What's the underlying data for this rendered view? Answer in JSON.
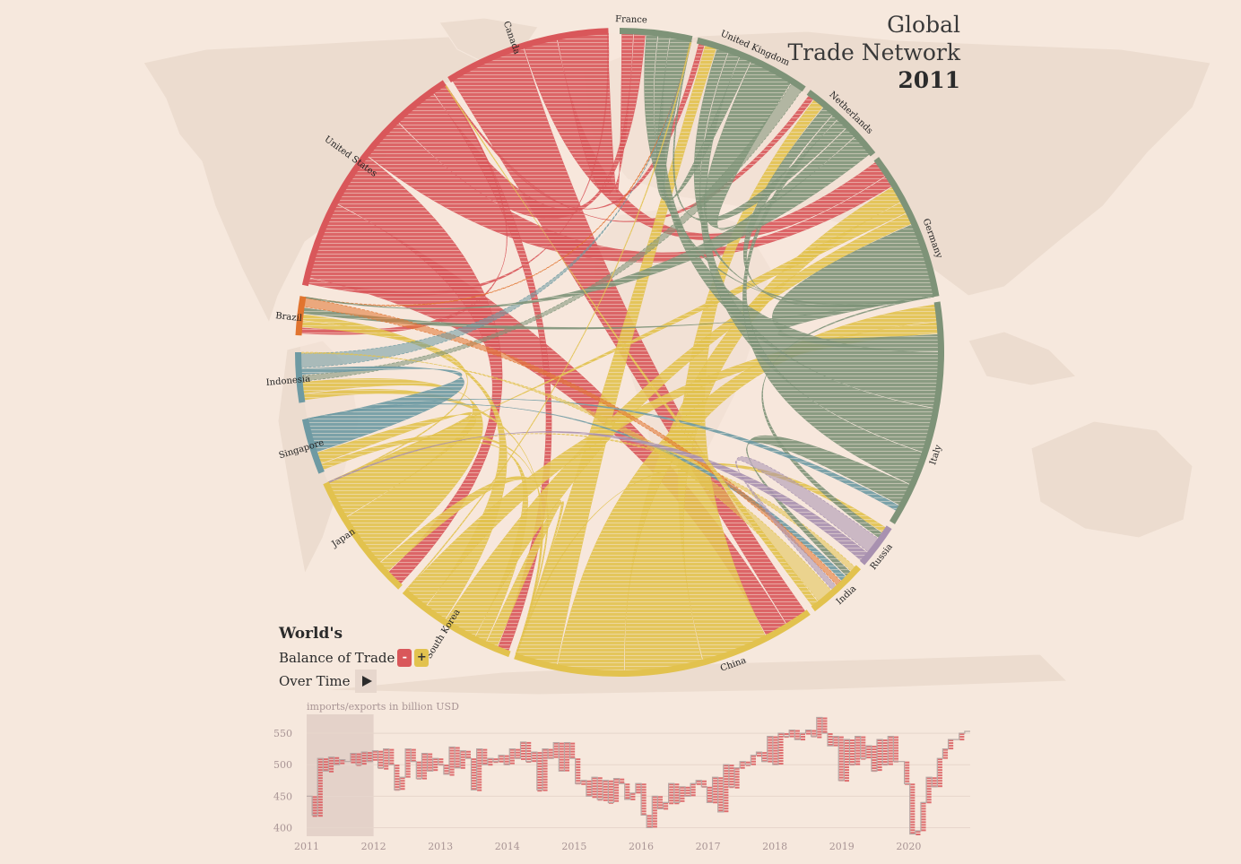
{
  "title": {
    "line1": "Global",
    "line2": "Trade Network",
    "year": "2011"
  },
  "legend": {
    "worlds": "World's",
    "balance_label": "Balance of Trade",
    "minus": "-",
    "plus": "+",
    "over_time": "Over Time"
  },
  "colors": {
    "background": "#f6e8dd",
    "land": "#ecdccf",
    "deficit": "#d9575a",
    "surplus": "#e2c24e",
    "europe": "#7e9378",
    "usa": "#d9575a",
    "brazil": "#e1742f",
    "asia_blue": "#6e9aa3",
    "russia": "#a891b0"
  },
  "countries": [
    {
      "name": "France",
      "color": "#7e9378"
    },
    {
      "name": "United Kingdom",
      "color": "#7e9378"
    },
    {
      "name": "Netherlands",
      "color": "#7e9378"
    },
    {
      "name": "Germany",
      "color": "#7e9378"
    },
    {
      "name": "Italy",
      "color": "#7e9378"
    },
    {
      "name": "Russia",
      "color": "#a891b0"
    },
    {
      "name": "India",
      "color": "#e2c24e"
    },
    {
      "name": "China",
      "color": "#e2c24e"
    },
    {
      "name": "South Korea",
      "color": "#e2c24e"
    },
    {
      "name": "Japan",
      "color": "#e2c24e"
    },
    {
      "name": "Singapore",
      "color": "#6e9aa3"
    },
    {
      "name": "Indonesia",
      "color": "#6e9aa3"
    },
    {
      "name": "Brazil",
      "color": "#e1742f"
    },
    {
      "name": "United States",
      "color": "#d9575a"
    },
    {
      "name": "Canada",
      "color": "#d9575a"
    }
  ],
  "chart_data": {
    "type": "line",
    "title": "World's Balance of Trade Over Time",
    "ylabel": "imports/exports in billion USD",
    "ylim": [
      385,
      580
    ],
    "yticks": [
      400,
      450,
      500,
      550
    ],
    "x_tick_labels": [
      "2011",
      "2012",
      "2013",
      "2014",
      "2015",
      "2016",
      "2017",
      "2018",
      "2019",
      "2020"
    ],
    "x_range": [
      2011,
      2020.92
    ],
    "selected_range": [
      2011,
      2012
    ],
    "series": [
      {
        "name": "imports/exports",
        "values": [
          450,
          420,
          510,
          490,
          512,
          500,
          508,
          505,
          518,
          500,
          520,
          505,
          522,
          495,
          525,
          500,
          460,
          480,
          525,
          505,
          478,
          518,
          490,
          510,
          500,
          485,
          528,
          495,
          522,
          510,
          460,
          525,
          500,
          510,
          505,
          515,
          500,
          525,
          510,
          536,
          505,
          520,
          460,
          525,
          510,
          535,
          490,
          535,
          510,
          470,
          475,
          450,
          480,
          445,
          475,
          440,
          478,
          470,
          445,
          455,
          470,
          420,
          400,
          450,
          430,
          440,
          470,
          440,
          465,
          450,
          470,
          475,
          465,
          440,
          480,
          425,
          500,
          465,
          495,
          505,
          500,
          515,
          520,
          505,
          545,
          500,
          550,
          545,
          555,
          540,
          550,
          555,
          545,
          575,
          550,
          530,
          545,
          475,
          540,
          500,
          545,
          510,
          530,
          490,
          540,
          500,
          545,
          505,
          505,
          470,
          390,
          395,
          440,
          480,
          465,
          510,
          525,
          540,
          540,
          550,
          553
        ]
      }
    ]
  }
}
